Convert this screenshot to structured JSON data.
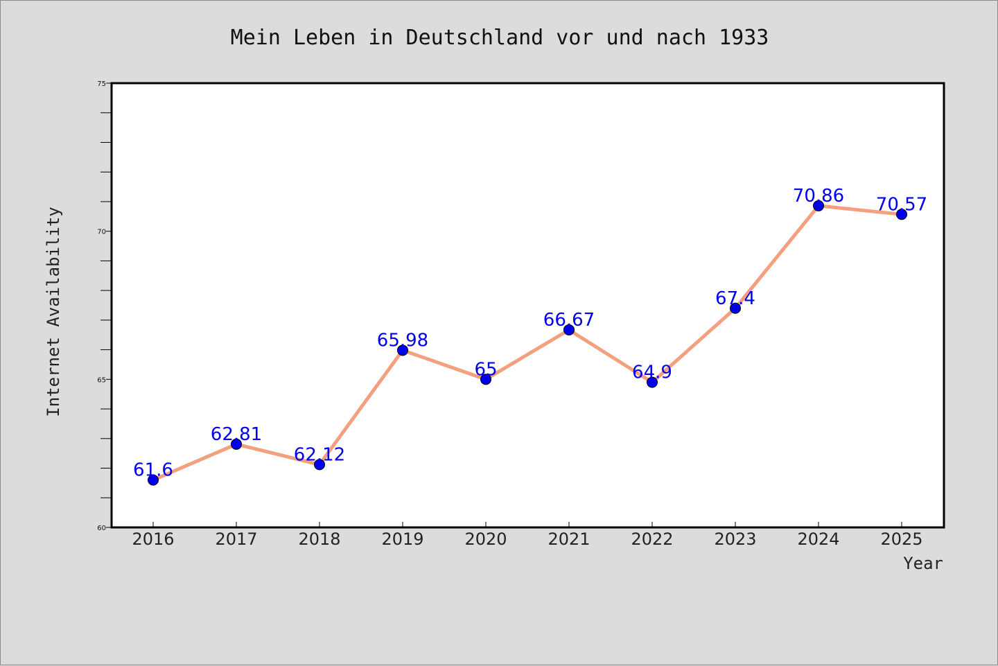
{
  "chart_data": {
    "type": "line",
    "title": "Mein Leben in Deutschland vor und nach 1933",
    "xlabel": "Year",
    "ylabel": "Internet Availability",
    "x": [
      "2016",
      "2017",
      "2018",
      "2019",
      "2020",
      "2021",
      "2022",
      "2023",
      "2024",
      "2025"
    ],
    "series": [
      {
        "values": [
          61.6,
          62.81,
          62.12,
          65.98,
          65,
          66.67,
          64.9,
          67.4,
          70.86,
          70.57
        ],
        "line_color": "#f4a07f",
        "marker_color": "#0000ee"
      }
    ],
    "data_labels": [
      "61.6",
      "62.81",
      "62.12",
      "65.98",
      "65",
      "66.67",
      "64.9",
      "67.4",
      "70.86",
      "70.57"
    ],
    "ylim": [
      60,
      75
    ],
    "yticks": [
      "60",
      "65",
      "70",
      "75"
    ],
    "grid": false,
    "legend": "none",
    "colors": {
      "background": "#dcdcdc",
      "plot_background": "#ffffff",
      "label_color": "#0000ee"
    }
  }
}
